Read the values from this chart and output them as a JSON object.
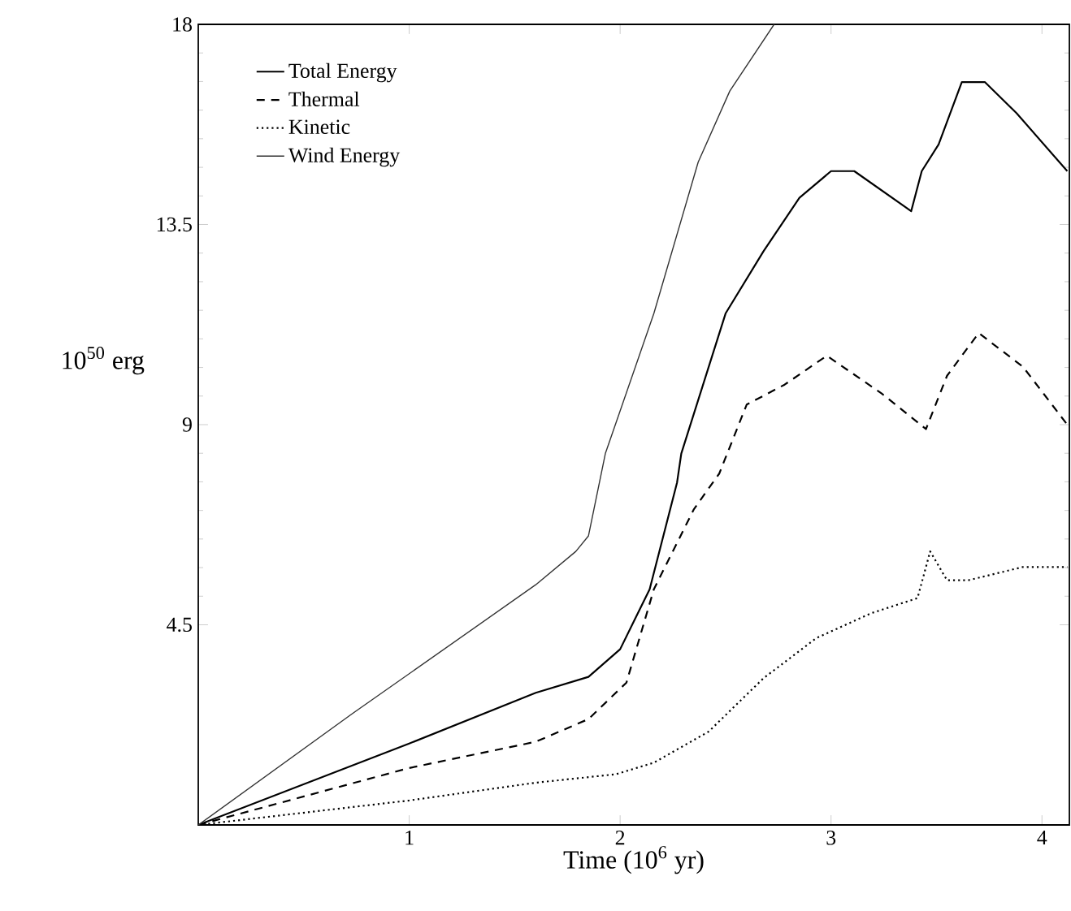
{
  "chart_data": {
    "type": "line",
    "xlabel": "Time (10$^{6}$ yr)",
    "ylabel": "10$^{50}$ erg",
    "xlim": [
      0,
      4.13
    ],
    "ylim": [
      0,
      18
    ],
    "xticks": [
      1,
      2,
      3,
      4
    ],
    "yticks": [
      4.5,
      9,
      13.5,
      18
    ],
    "legend": "top left",
    "grid": false,
    "series": [
      {
        "name": "Total Energy",
        "color": "#000000",
        "line_style": "solid",
        "x": [
          0,
          1,
          1.6,
          1.85,
          2.0,
          2.14,
          2.27,
          2.29,
          2.5,
          2.68,
          2.85,
          3.0,
          3.11,
          3.38,
          3.43,
          3.51,
          3.62,
          3.73,
          3.88,
          4.12
        ],
        "values": [
          0,
          1.83,
          2.97,
          3.33,
          3.95,
          5.3,
          7.7,
          8.35,
          11.5,
          12.9,
          14.1,
          14.7,
          14.7,
          13.8,
          14.7,
          15.3,
          16.7,
          16.7,
          16.0,
          14.7
        ]
      },
      {
        "name": "Thermal",
        "color": "#000000",
        "line_style": "dashed",
        "x": [
          0,
          1,
          1.6,
          1.85,
          2.03,
          2.16,
          2.35,
          2.47,
          2.6,
          2.78,
          2.98,
          3.24,
          3.45,
          3.55,
          3.7,
          3.91,
          4.12
        ],
        "values": [
          0,
          1.28,
          1.87,
          2.38,
          3.2,
          5.3,
          7.1,
          7.9,
          9.45,
          9.9,
          10.55,
          9.7,
          8.9,
          10.1,
          11.06,
          10.3,
          9.0
        ]
      },
      {
        "name": "Kinetic",
        "color": "#000000",
        "line_style": "dotted",
        "x": [
          0,
          1,
          1.6,
          1.98,
          2.16,
          2.42,
          2.68,
          2.93,
          3.19,
          3.41,
          3.47,
          3.55,
          3.65,
          3.91,
          4.12
        ],
        "values": [
          0,
          0.55,
          0.95,
          1.14,
          1.4,
          2.1,
          3.3,
          4.2,
          4.76,
          5.1,
          6.15,
          5.5,
          5.5,
          5.8,
          5.8
        ]
      },
      {
        "name": "Wind Energy",
        "color": "#333333",
        "line_style": "solid",
        "x": [
          0,
          0.73,
          1.6,
          1.79,
          1.85,
          1.93,
          2.16,
          2.37,
          2.52,
          2.73
        ],
        "values": [
          0,
          2.5,
          5.4,
          6.15,
          6.5,
          8.35,
          11.5,
          14.9,
          16.5,
          18
        ]
      }
    ]
  }
}
